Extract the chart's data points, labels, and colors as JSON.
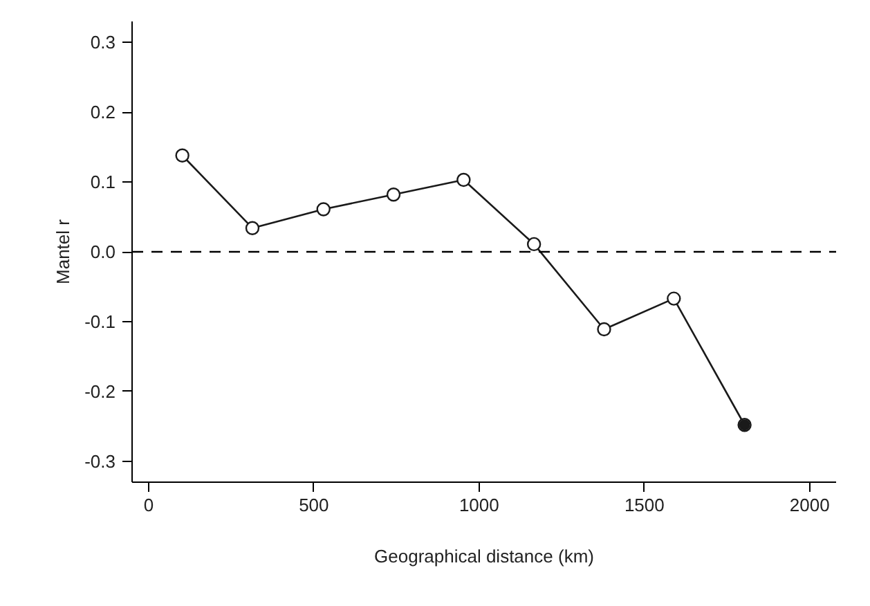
{
  "chart_data": {
    "type": "line",
    "xlabel": "Geographical distance (km)",
    "ylabel": "Mantel r",
    "xlim": [
      -50,
      2080
    ],
    "ylim": [
      -0.33,
      0.33
    ],
    "xticks": [
      0,
      500,
      1000,
      1500,
      2000
    ],
    "yticks": [
      {
        "value": -0.3,
        "label": "-0.3"
      },
      {
        "value": -0.2,
        "label": "-0.2"
      },
      {
        "value": -0.1,
        "label": "-0.1"
      },
      {
        "value": 0,
        "label": "0.0"
      },
      {
        "value": 0.1,
        "label": "0.1"
      },
      {
        "value": 0.2,
        "label": "0.2"
      },
      {
        "value": 0.3,
        "label": "0.3"
      }
    ],
    "grid": false,
    "line_style": "solid",
    "ref_lines": [
      {
        "axis": "y",
        "value": 0,
        "line_style": "dashed",
        "color": "#000000"
      }
    ],
    "series": [
      {
        "marker": "circle",
        "color": "#1a1a1a",
        "x": [
          102,
          314,
          529,
          741,
          953,
          1166,
          1378,
          1589,
          1803
        ],
        "values": [
          0.138,
          0.034,
          0.061,
          0.082,
          0.103,
          0.011,
          -0.111,
          -0.067,
          -0.248
        ]
      },
      {
        "type": "scatter",
        "marker": "circle",
        "color": "#1a1a1a",
        "x": [
          1803
        ],
        "values": [
          -0.248
        ]
      }
    ]
  }
}
